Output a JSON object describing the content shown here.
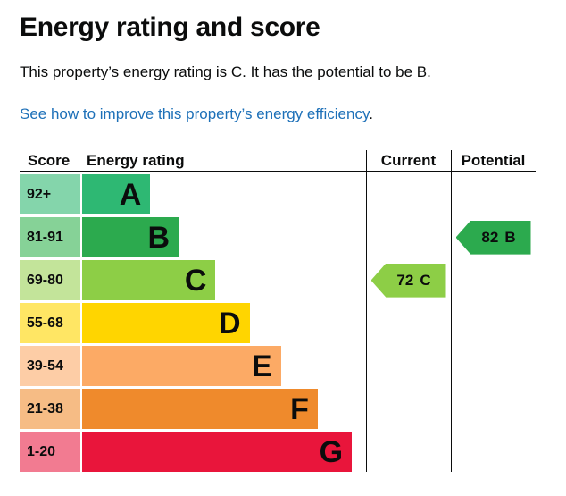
{
  "page": {
    "title": "Energy rating and score",
    "intro": "This property’s energy rating is C. It has the potential to be B.",
    "link": "See how to improve this property’s energy efficiency",
    "link_suffix": ".",
    "text_color": "#0b0c0c",
    "link_color": "#1d70b8"
  },
  "chart_data": {
    "type": "bar",
    "subtype": "epc-energy-rating",
    "title": "Energy rating and score",
    "headers": {
      "score": "Score",
      "rating": "Energy rating",
      "current": "Current",
      "potential": "Potential"
    },
    "bands": [
      {
        "score_range": "92+",
        "letter": "A",
        "color": "#2eb873",
        "tint": "#84d5ab",
        "bar_width_pct": 24
      },
      {
        "score_range": "81-91",
        "letter": "B",
        "color": "#2caa4e",
        "tint": "#86d297",
        "bar_width_pct": 34
      },
      {
        "score_range": "69-80",
        "letter": "C",
        "color": "#8dce46",
        "tint": "#c3e49a",
        "bar_width_pct": 47
      },
      {
        "score_range": "55-68",
        "letter": "D",
        "color": "#ffd500",
        "tint": "#ffe664",
        "bar_width_pct": 59
      },
      {
        "score_range": "39-54",
        "letter": "E",
        "color": "#fcaa65",
        "tint": "#fdcda6",
        "bar_width_pct": 70
      },
      {
        "score_range": "21-38",
        "letter": "F",
        "color": "#ef8a2c",
        "tint": "#f6bc85",
        "bar_width_pct": 83
      },
      {
        "score_range": "1-20",
        "letter": "G",
        "color": "#e9153b",
        "tint": "#f27b91",
        "bar_width_pct": 95
      }
    ],
    "current": {
      "value": "72",
      "letter": "C",
      "color": "#8dce46"
    },
    "potential": {
      "value": "82",
      "letter": "B",
      "color": "#2caa4e"
    }
  }
}
